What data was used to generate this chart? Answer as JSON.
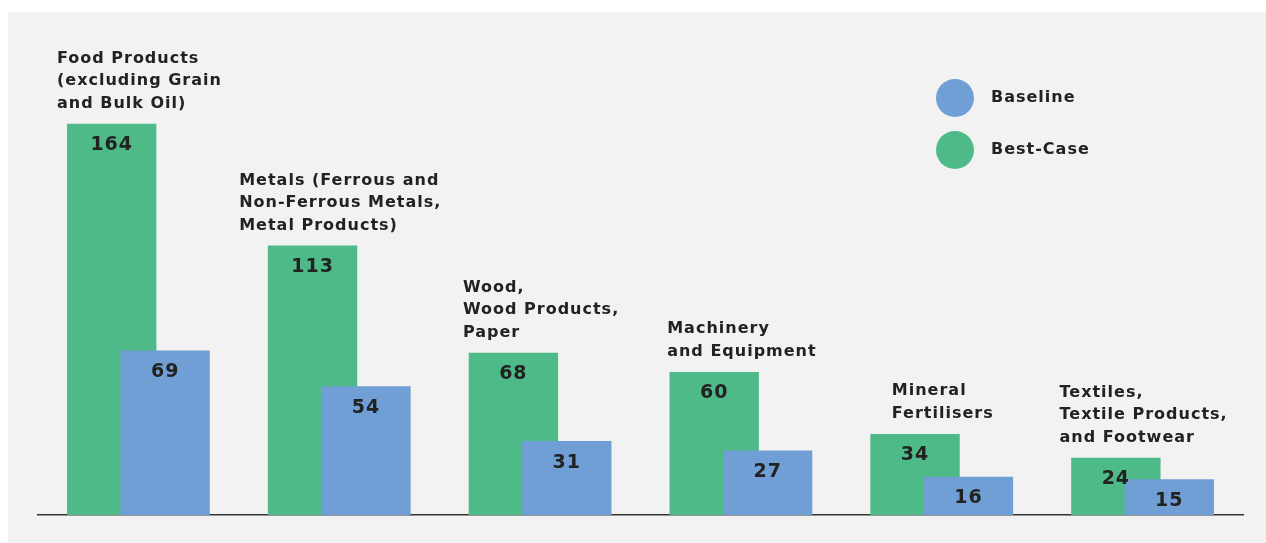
{
  "chart_data": {
    "type": "bar",
    "categories": [
      "Food Products\n(excluding Grain\nand Bulk Oil)",
      "Metals (Ferrous and\nNon-Ferrous Metals,\nMetal Products)",
      "Wood,\nWood Products,\nPaper",
      "Machinery\nand Equipment",
      "Mineral\nFertilisers",
      "Textiles,\nTextile Products,\nand Footwear"
    ],
    "series": [
      {
        "name": "Baseline",
        "color": "#6f9fd4",
        "values": [
          69,
          54,
          31,
          27,
          16,
          15
        ]
      },
      {
        "name": "Best-Case",
        "color": "#4dba88",
        "values": [
          164,
          113,
          68,
          60,
          34,
          24
        ]
      }
    ],
    "data_labels": true,
    "legend": "top right",
    "grid": false
  }
}
